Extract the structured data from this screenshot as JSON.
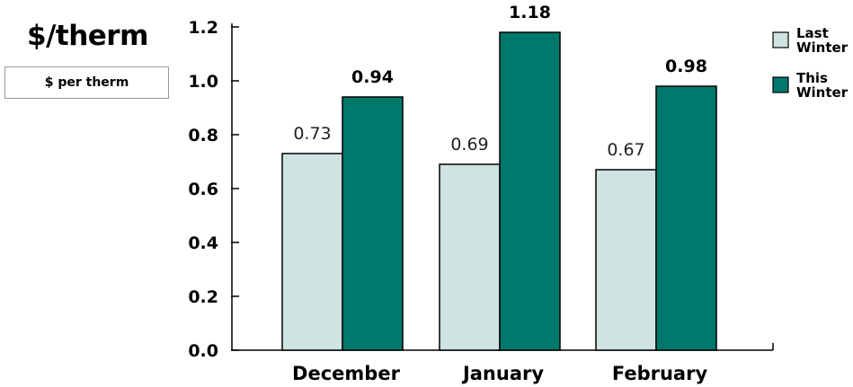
{
  "unit_title": "$/therm",
  "unit_box": "$ per therm",
  "chart_data": {
    "type": "bar",
    "categories": [
      "December",
      "January",
      "February"
    ],
    "series": [
      {
        "name": "Last Winter",
        "values": [
          0.73,
          0.69,
          0.67
        ],
        "color": "#cfe3e1",
        "label_style": "normal"
      },
      {
        "name": "This Winter",
        "values": [
          0.94,
          1.18,
          0.98
        ],
        "color": "#00776b",
        "label_style": "bold"
      }
    ],
    "ylim": [
      0,
      1.2
    ],
    "yticks": [
      "0.0",
      "0.2",
      "0.4",
      "0.6",
      "0.8",
      "1.0",
      "1.2"
    ],
    "value_labels": {
      "Last Winter": [
        "0.73",
        "0.69",
        "0.67"
      ],
      "This Winter": [
        "0.94",
        "1.18",
        "0.98"
      ]
    },
    "legend": {
      "position": "top-right",
      "entries": [
        {
          "line1": "Last",
          "line2": "Winter"
        },
        {
          "line1": "This",
          "line2": "Winter"
        }
      ]
    },
    "grid": false
  }
}
